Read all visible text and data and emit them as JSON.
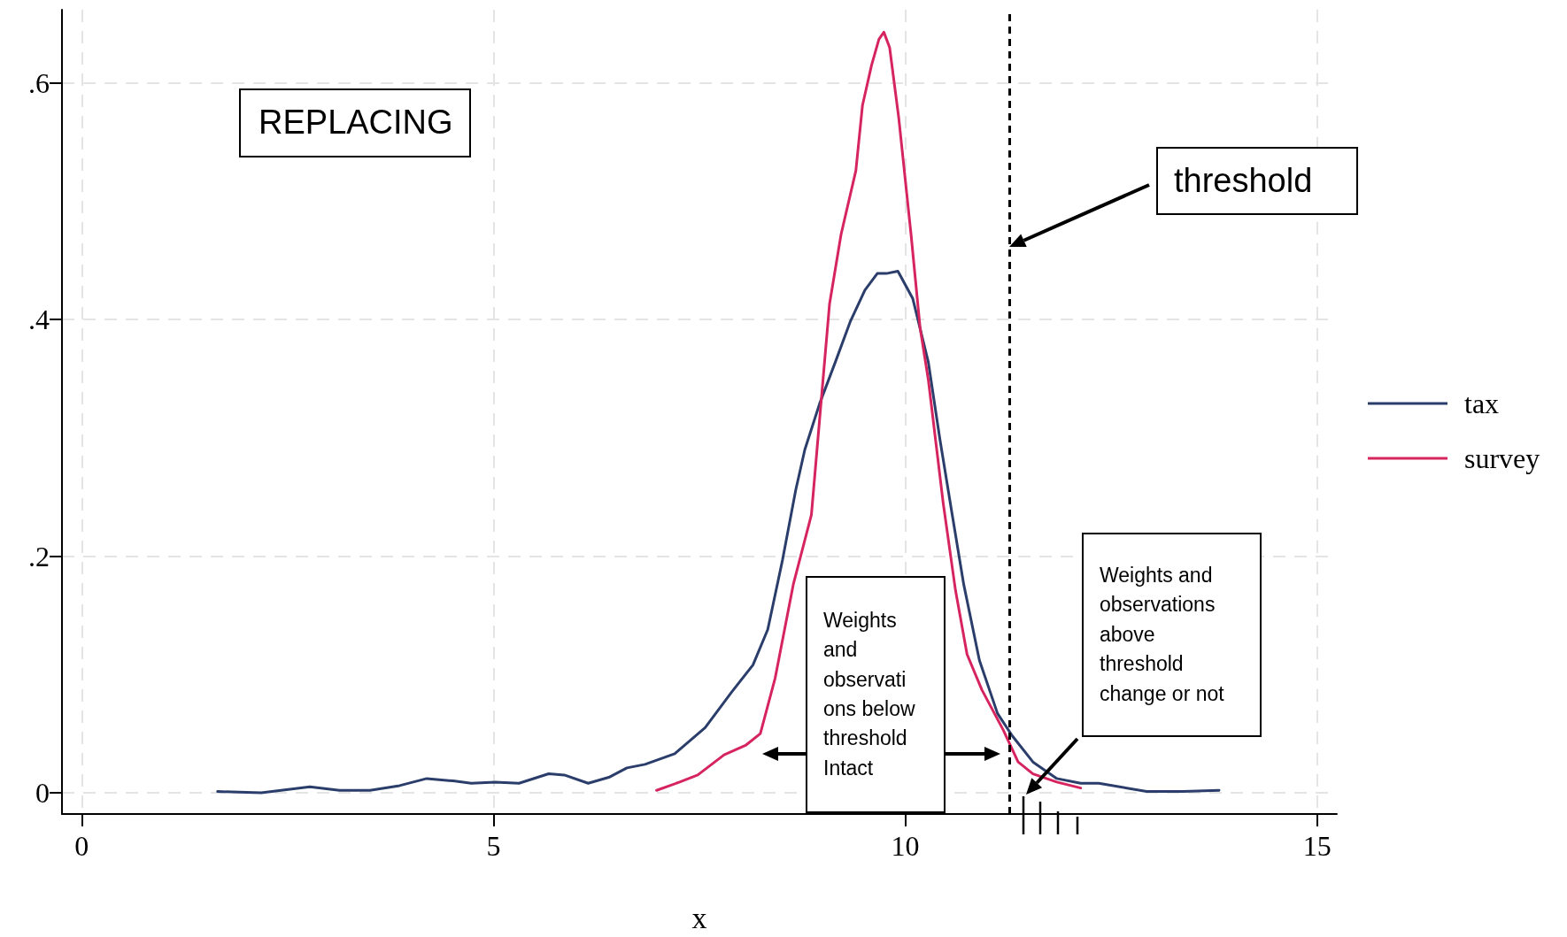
{
  "chart_data": {
    "type": "line",
    "xlabel": "x",
    "xlim": [
      -0.24,
      15.24
    ],
    "xticks": [
      0,
      5,
      10,
      15
    ],
    "ylim": [
      -0.018,
      0.662
    ],
    "yticks": [
      0,
      {
        "value": 0.2,
        "label": ".2"
      },
      {
        "value": 0.4,
        "label": ".4"
      },
      {
        "value": 0.6,
        "label": ".6"
      }
    ],
    "grid": true,
    "legend": "right",
    "marker": "none",
    "series": [
      {
        "name": "tax",
        "color": "#2b3d6b",
        "x": [
          1.65,
          2.18,
          2.77,
          3.13,
          3.5,
          3.86,
          4.19,
          4.51,
          4.73,
          5.02,
          5.31,
          5.67,
          5.86,
          6.15,
          6.4,
          6.62,
          6.84,
          7.2,
          7.57,
          7.89,
          8.15,
          8.33,
          8.51,
          8.67,
          8.78,
          8.96,
          9.15,
          9.33,
          9.51,
          9.66,
          9.77,
          9.91,
          10.09,
          10.28,
          10.42,
          10.57,
          10.71,
          10.9,
          11.12,
          11.3,
          11.55,
          11.84,
          12.13,
          12.35,
          12.93,
          13.37,
          13.81
        ],
        "values": [
          0.001,
          0.0,
          0.005,
          0.002,
          0.002,
          0.006,
          0.012,
          0.01,
          0.008,
          0.009,
          0.008,
          0.016,
          0.015,
          0.008,
          0.013,
          0.021,
          0.024,
          0.033,
          0.055,
          0.085,
          0.108,
          0.138,
          0.197,
          0.256,
          0.29,
          0.329,
          0.364,
          0.398,
          0.425,
          0.439,
          0.439,
          0.441,
          0.418,
          0.364,
          0.299,
          0.235,
          0.176,
          0.112,
          0.067,
          0.048,
          0.026,
          0.012,
          0.008,
          0.008,
          0.001,
          0.001,
          0.002
        ]
      },
      {
        "name": "survey",
        "color": "#d6245f",
        "x": [
          6.98,
          7.26,
          7.48,
          7.8,
          8.06,
          8.24,
          8.42,
          8.64,
          8.86,
          9.08,
          9.22,
          9.4,
          9.48,
          9.59,
          9.68,
          9.74,
          9.81,
          9.92,
          10.07,
          10.18,
          10.28,
          10.46,
          10.61,
          10.75,
          10.93,
          11.19,
          11.37,
          11.55,
          11.84,
          12.13
        ],
        "values": [
          0.002,
          0.009,
          0.015,
          0.032,
          0.04,
          0.05,
          0.097,
          0.176,
          0.235,
          0.413,
          0.472,
          0.526,
          0.581,
          0.615,
          0.637,
          0.643,
          0.63,
          0.571,
          0.472,
          0.393,
          0.349,
          0.245,
          0.171,
          0.117,
          0.087,
          0.053,
          0.026,
          0.016,
          0.009,
          0.004
        ]
      }
    ],
    "ref_lines": [
      {
        "axis": "x",
        "value": 11.26,
        "color": "#000000",
        "line_style": "dashed"
      }
    ],
    "annotations": [
      "REPLACING",
      "threshold",
      "Weights and observations below threshold Intact",
      "Weights and observations above threshold change or not"
    ]
  }
}
